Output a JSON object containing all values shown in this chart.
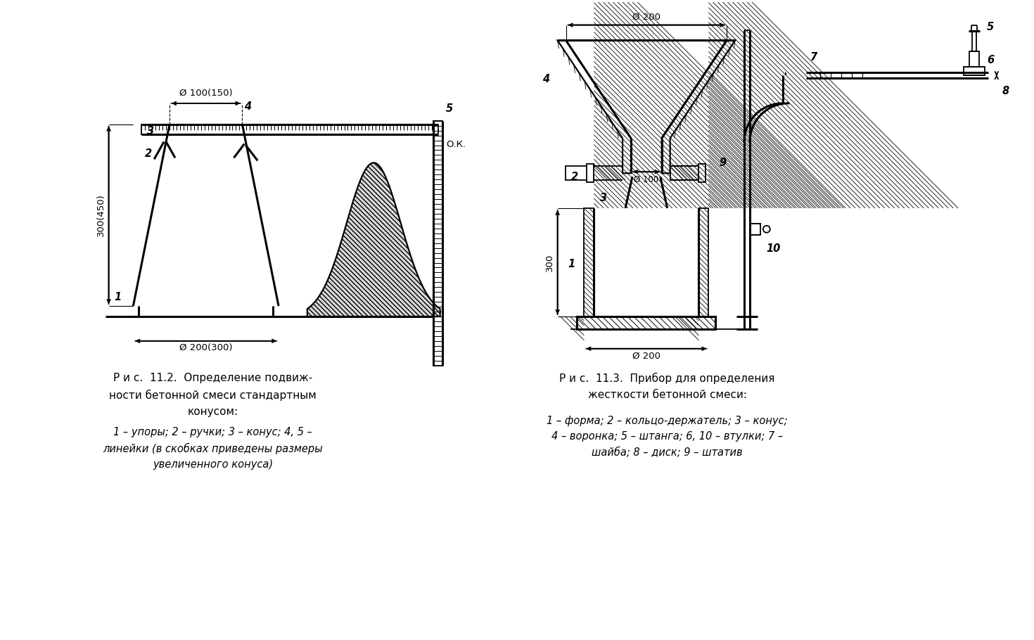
{
  "background_color": "#ffffff",
  "fig_width": 14.7,
  "fig_height": 9.1,
  "caption_left": "Р и с.  11.2.  Определение подвиж-\nности бетонной смеси стандартным\nконусом:",
  "caption_left2": "1 – упоры; 2 – ручки; 3 – конус; 4, 5 –\nлинейки (в скобках приведены размеры\nувеличенного конуса)",
  "caption_right": "Р и с.  11.3.  Прибор для определения\nжесткости бетонной смеси:",
  "caption_right2": "1 – форма; 2 – кольцо-держатель; 3 – конус;\n4 – воронка; 5 – штанга; 6, 10 – втулки; 7 –\nшайба; 8 – диск; 9 – штатив",
  "dim_top_100": "Ø 100(150)",
  "dim_bottom_200": "Ø 200(300)",
  "dim_right_200": "Ø 200",
  "dim_right_100": "Ø 100",
  "dim_right_200b": "Ø 200",
  "label_ok": "О.К.",
  "label_300_450": "300(450)",
  "label_300": "300"
}
